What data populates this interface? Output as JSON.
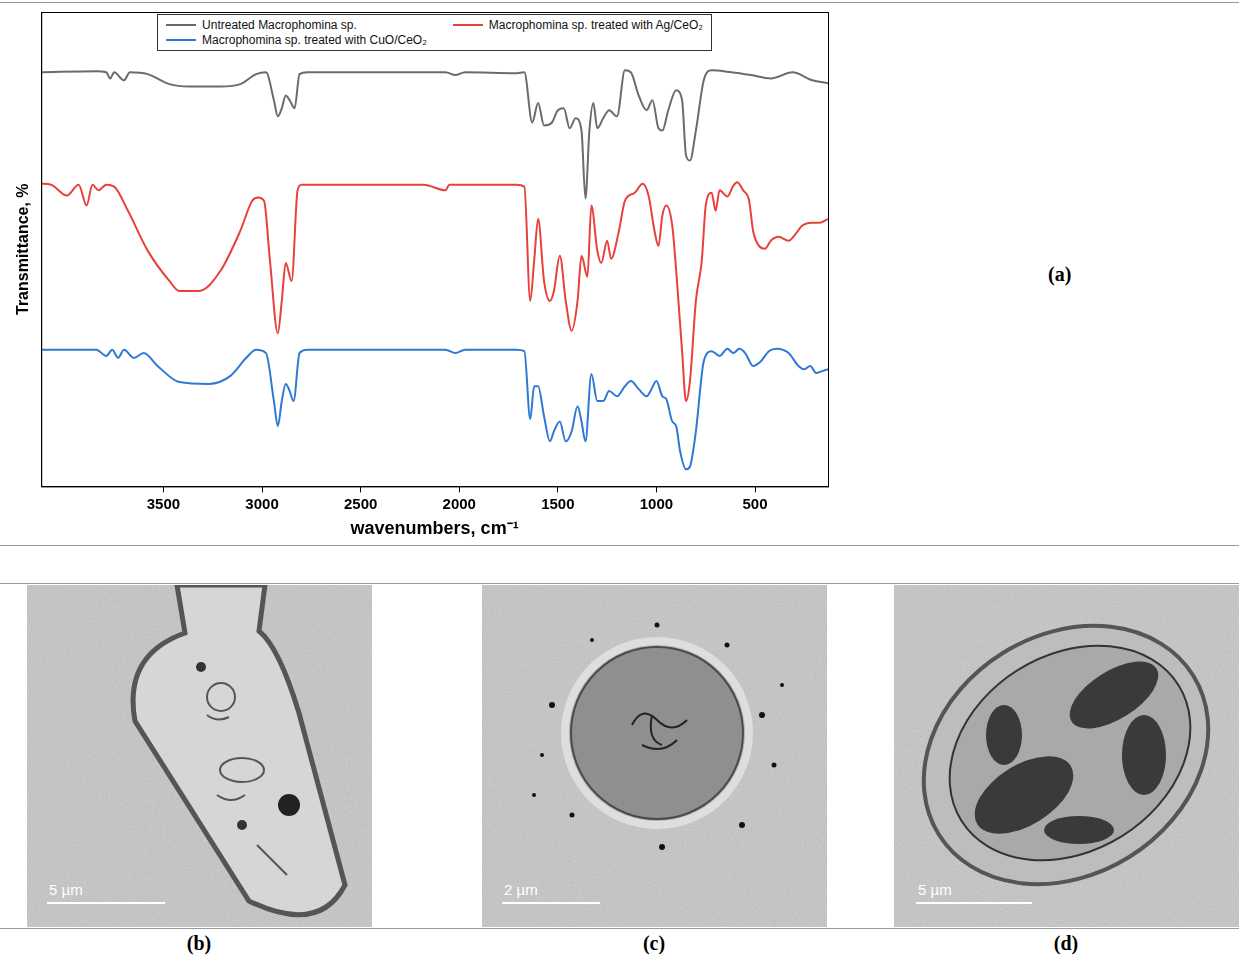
{
  "chart_data": {
    "type": "line",
    "panel_label": "(a)",
    "x_label": "wavenumbers, cm⁻¹",
    "y_label": "Transmittance, %",
    "xlim": [
      4120,
      130
    ],
    "xticks": [
      3500,
      3000,
      2500,
      2000,
      1500,
      1000,
      500
    ],
    "ylim": [
      0,
      100
    ],
    "tick_labels": "x",
    "grid": false,
    "legend": "top",
    "series": [
      {
        "name": "Untreated Macrophomina sp.",
        "color": "#6b6b6b",
        "x": [
          4120,
          3840,
          3790,
          3770,
          3750,
          3700,
          3670,
          3580,
          3470,
          3370,
          3210,
          3110,
          3030,
          2980,
          2940,
          2920,
          2900,
          2880,
          2860,
          2835,
          2810,
          2770,
          2070,
          2020,
          1970,
          1710,
          1670,
          1630,
          1600,
          1570,
          1530,
          1500,
          1470,
          1440,
          1410,
          1380,
          1360,
          1340,
          1320,
          1300,
          1270,
          1240,
          1200,
          1160,
          1130,
          1090,
          1050,
          1020,
          990,
          970,
          940,
          900,
          870,
          850,
          830,
          800,
          760,
          720,
          620,
          520,
          420,
          310,
          210,
          130
        ],
        "values": [
          87.3,
          87.5,
          87.3,
          86.0,
          87.3,
          85.6,
          87.3,
          86.9,
          84.8,
          84.3,
          84.3,
          84.8,
          86.9,
          87.3,
          81.4,
          78.0,
          79.7,
          82.4,
          81.4,
          79.7,
          86.9,
          87.3,
          87.3,
          86.7,
          87.3,
          87.1,
          87.3,
          76.7,
          80.8,
          76.1,
          76.7,
          79.3,
          79.7,
          75.5,
          77.6,
          75.0,
          60.7,
          75.0,
          80.8,
          75.5,
          77.6,
          79.3,
          78.0,
          87.7,
          87.3,
          82.4,
          79.3,
          81.4,
          75.5,
          75.0,
          79.3,
          83.5,
          81.4,
          69.8,
          68.7,
          75.0,
          85.6,
          87.7,
          87.3,
          86.7,
          86.0,
          87.3,
          85.6,
          85.0
        ]
      },
      {
        "name": "Macrophomina sp. treated with Ag/CeO₂",
        "color": "#e8413c",
        "x": [
          4120,
          4070,
          3990,
          3930,
          3890,
          3860,
          3830,
          3790,
          3750,
          3680,
          3580,
          3470,
          3420,
          3320,
          3210,
          3110,
          3050,
          3020,
          2990,
          2960,
          2920,
          2900,
          2880,
          2850,
          2820,
          2800,
          2180,
          2070,
          2050,
          1710,
          1670,
          1640,
          1620,
          1600,
          1570,
          1540,
          1520,
          1490,
          1460,
          1430,
          1400,
          1380,
          1350,
          1330,
          1300,
          1280,
          1250,
          1230,
          1190,
          1160,
          1110,
          1070,
          1040,
          1010,
          990,
          970,
          950,
          920,
          900,
          870,
          850,
          830,
          800,
          770,
          750,
          720,
          700,
          680,
          640,
          610,
          590,
          560,
          530,
          510,
          480,
          450,
          420,
          380,
          330,
          300,
          260,
          210,
          170,
          130
        ],
        "values": [
          63.8,
          63.6,
          61.3,
          63.6,
          59.2,
          63.6,
          62.4,
          63.6,
          63.2,
          58.1,
          49.7,
          43.3,
          41.2,
          41.2,
          45.5,
          53.9,
          60.2,
          60.9,
          60.2,
          47.6,
          32.3,
          39.1,
          47.1,
          43.3,
          62.4,
          63.6,
          63.6,
          62.4,
          63.6,
          63.6,
          63.2,
          39.1,
          47.6,
          56.4,
          43.3,
          39.1,
          41.2,
          48.6,
          39.1,
          32.8,
          39.1,
          48.6,
          44.2,
          59.2,
          49.7,
          47.1,
          51.8,
          48.0,
          53.9,
          60.2,
          61.9,
          63.8,
          61.3,
          53.9,
          50.7,
          57.1,
          59.2,
          55.0,
          45.5,
          28.5,
          18.0,
          22.2,
          39.1,
          47.6,
          59.2,
          61.9,
          58.1,
          62.4,
          61.1,
          63.4,
          64.1,
          62.4,
          60.2,
          53.9,
          50.7,
          50.1,
          51.8,
          52.6,
          51.8,
          52.9,
          55.0,
          55.6,
          55.6,
          56.4
        ]
      },
      {
        "name": "Macrophomina sp. treated with CuO/CeO₂",
        "color": "#2f78d4",
        "x": [
          4120,
          3840,
          3790,
          3760,
          3730,
          3700,
          3650,
          3600,
          3530,
          3420,
          3270,
          3160,
          3080,
          3030,
          2980,
          2940,
          2920,
          2900,
          2880,
          2860,
          2840,
          2810,
          2770,
          2070,
          2020,
          1970,
          1710,
          1670,
          1640,
          1620,
          1600,
          1570,
          1540,
          1520,
          1490,
          1460,
          1430,
          1400,
          1380,
          1360,
          1330,
          1300,
          1270,
          1240,
          1200,
          1160,
          1130,
          1090,
          1050,
          1030,
          1000,
          970,
          950,
          920,
          900,
          880,
          850,
          830,
          800,
          760,
          720,
          680,
          640,
          610,
          580,
          550,
          510,
          470,
          430,
          390,
          330,
          280,
          250,
          220,
          190,
          160,
          130
        ],
        "values": [
          28.8,
          28.8,
          27.5,
          28.8,
          27.1,
          28.8,
          27.1,
          28.1,
          25.4,
          22.0,
          21.6,
          23.3,
          27.1,
          28.8,
          28.1,
          18.0,
          12.7,
          18.0,
          21.6,
          20.1,
          18.0,
          28.1,
          28.8,
          28.8,
          28.1,
          28.8,
          28.8,
          28.5,
          14.2,
          21.1,
          21.1,
          14.8,
          9.5,
          11.6,
          13.7,
          9.5,
          11.6,
          16.9,
          13.7,
          9.5,
          23.7,
          18.0,
          18.0,
          20.1,
          19.0,
          21.1,
          22.2,
          20.5,
          19.0,
          20.1,
          22.2,
          19.0,
          18.4,
          13.7,
          12.7,
          7.4,
          3.6,
          4.2,
          11.6,
          26.4,
          28.5,
          27.5,
          29.0,
          28.1,
          29.0,
          28.1,
          25.4,
          26.4,
          28.5,
          29.0,
          28.1,
          25.4,
          24.7,
          25.4,
          23.9,
          24.3,
          24.7
        ]
      }
    ]
  },
  "images": [
    {
      "label": "(b)",
      "scale_bar": "5 µm"
    },
    {
      "label": "(c)",
      "scale_bar": "2 µm"
    },
    {
      "label": "(d)",
      "scale_bar": "5 µm"
    }
  ]
}
